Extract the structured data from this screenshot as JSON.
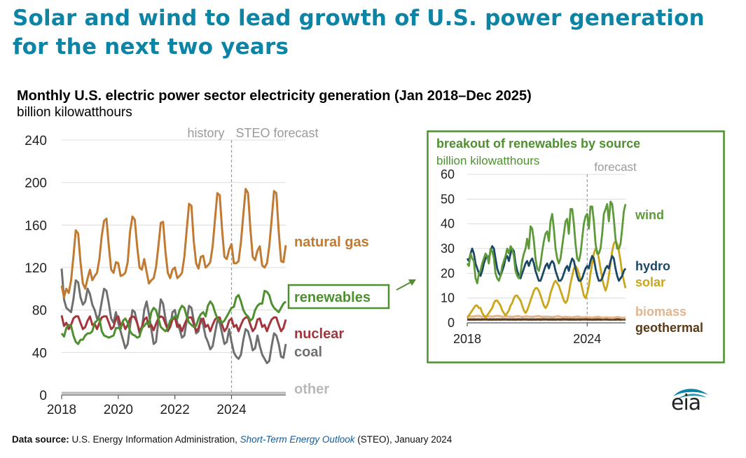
{
  "headline": "Solar and wind to lead growth of U.S. power generation for the next two years",
  "chart_title": "Monthly U.S. electric power sector electricity generation (Jan 2018–Dec 2025)",
  "chart_unit": "billion kilowatthours",
  "source": {
    "label": "Data source:",
    "text_before": " U.S. Energy Information Administration, ",
    "publication": "Short-Term Energy Outlook",
    "text_after": " (STEO), January 2024"
  },
  "logo_text": "eia",
  "colors": {
    "natural_gas": "#c07a31",
    "renewables": "#4e8f2f",
    "nuclear": "#a2363c",
    "coal": "#6f6f6f",
    "other": "#b9b9b9",
    "wind": "#5e9a3a",
    "hydro": "#1b4866",
    "solar": "#c9a61a",
    "biomass": "#e2b58e",
    "geothermal": "#5a3a18",
    "axis_text": "#222222",
    "forecast_label": "#9b9b9b",
    "inset_border": "#4e8f2f"
  },
  "chart_data": [
    {
      "type": "line",
      "title": "Monthly U.S. electric power sector electricity generation (Jan 2018–Dec 2025)",
      "ylabel": "billion kilowatthours",
      "x_range": [
        "2018-01",
        "2025-12"
      ],
      "ylim": [
        0,
        240
      ],
      "yticks": [
        0,
        40,
        80,
        120,
        160,
        200,
        240
      ],
      "xticks": [
        "2018",
        "2020",
        "2022",
        "2024"
      ],
      "history_label": "history",
      "forecast_label": "STEO forecast",
      "forecast_start": "2024-01",
      "grid": true,
      "series": [
        {
          "name": "natural gas",
          "key": "natural_gas",
          "values": [
            103,
            92,
            100,
            96,
            108,
            130,
            155,
            152,
            125,
            105,
            100,
            110,
            118,
            108,
            112,
            115,
            128,
            150,
            164,
            166,
            140,
            118,
            115,
            125,
            124,
            112,
            113,
            115,
            125,
            154,
            168,
            165,
            140,
            120,
            118,
            128,
            116,
            105,
            108,
            110,
            120,
            140,
            162,
            163,
            135,
            115,
            110,
            118,
            120,
            110,
            112,
            115,
            130,
            155,
            180,
            178,
            145,
            124,
            119,
            130,
            131,
            120,
            122,
            125,
            140,
            165,
            190,
            188,
            155,
            130,
            128,
            137,
            142,
            124,
            124,
            126,
            144,
            170,
            194,
            190,
            156,
            130,
            127,
            136,
            140,
            122,
            120,
            124,
            140,
            165,
            192,
            190,
            154,
            126,
            125,
            141
          ]
        },
        {
          "name": "renewables",
          "key": "renewables",
          "values": [
            58,
            55,
            63,
            66,
            65,
            56,
            50,
            48,
            52,
            52,
            56,
            58,
            58,
            60,
            68,
            70,
            72,
            60,
            56,
            55,
            54,
            55,
            56,
            63,
            63,
            62,
            70,
            72,
            68,
            60,
            57,
            56,
            54,
            55,
            63,
            65,
            68,
            66,
            78,
            82,
            80,
            72,
            64,
            62,
            60,
            63,
            70,
            72,
            74,
            72,
            80,
            84,
            82,
            74,
            68,
            66,
            64,
            65,
            72,
            76,
            78,
            74,
            84,
            88,
            85,
            78,
            72,
            70,
            68,
            70,
            74,
            78,
            82,
            83,
            92,
            94,
            88,
            80,
            76,
            74,
            70,
            72,
            80,
            84,
            86,
            86,
            98,
            97,
            94,
            86,
            82,
            80,
            78,
            82,
            86,
            88
          ]
        },
        {
          "name": "nuclear",
          "key": "nuclear",
          "values": [
            75,
            65,
            68,
            62,
            66,
            72,
            74,
            74,
            68,
            62,
            64,
            70,
            74,
            66,
            67,
            62,
            68,
            73,
            74,
            74,
            68,
            62,
            64,
            72,
            74,
            66,
            68,
            62,
            66,
            72,
            74,
            73,
            68,
            60,
            64,
            71,
            73,
            64,
            66,
            61,
            67,
            72,
            74,
            73,
            67,
            61,
            64,
            71,
            73,
            64,
            66,
            60,
            66,
            71,
            73,
            73,
            67,
            60,
            63,
            70,
            72,
            64,
            66,
            60,
            66,
            71,
            73,
            73,
            66,
            60,
            63,
            70,
            72,
            64,
            66,
            60,
            66,
            71,
            73,
            73,
            66,
            60,
            63,
            71,
            72,
            64,
            66,
            60,
            66,
            71,
            73,
            73,
            66,
            60,
            63,
            71
          ]
        },
        {
          "name": "coal",
          "key": "coal",
          "values": [
            119,
            90,
            82,
            80,
            78,
            90,
            108,
            106,
            92,
            85,
            88,
            100,
            95,
            85,
            80,
            72,
            75,
            88,
            100,
            98,
            86,
            72,
            68,
            78,
            68,
            60,
            52,
            44,
            48,
            65,
            80,
            78,
            68,
            58,
            62,
            80,
            88,
            76,
            62,
            48,
            50,
            70,
            90,
            86,
            72,
            60,
            64,
            78,
            80,
            68,
            62,
            54,
            56,
            70,
            84,
            82,
            70,
            58,
            60,
            72,
            66,
            55,
            50,
            43,
            46,
            58,
            70,
            68,
            58,
            48,
            50,
            62,
            50,
            40,
            36,
            34,
            38,
            52,
            62,
            60,
            52,
            42,
            44,
            56,
            46,
            38,
            34,
            30,
            32,
            46,
            58,
            56,
            48,
            36,
            35,
            48
          ]
        },
        {
          "name": "other",
          "key": "other",
          "values": [
            2,
            2,
            2,
            2,
            2,
            2,
            2,
            2,
            2,
            2,
            2,
            2,
            2,
            2,
            2,
            2,
            2,
            2,
            2,
            2,
            2,
            2,
            2,
            2,
            2,
            2,
            2,
            2,
            2,
            2,
            2,
            2,
            2,
            2,
            2,
            2,
            2,
            2,
            2,
            2,
            2,
            2,
            2,
            2,
            2,
            2,
            2,
            2,
            2,
            2,
            2,
            2,
            2,
            2,
            2,
            2,
            2,
            2,
            2,
            2,
            2,
            2,
            2,
            2,
            2,
            2,
            2,
            2,
            2,
            2,
            2,
            2,
            2,
            2,
            2,
            2,
            2,
            2,
            2,
            2,
            2,
            2,
            2,
            2,
            2,
            2,
            2,
            2,
            2,
            2,
            2,
            2,
            2,
            2,
            2,
            2
          ]
        }
      ]
    },
    {
      "type": "line",
      "title": "breakout of renewables by source",
      "ylabel": "billion kilowatthours",
      "x_range": [
        "2018-01",
        "2025-12"
      ],
      "ylim": [
        0,
        60
      ],
      "yticks": [
        0,
        10,
        20,
        30,
        40,
        50,
        60
      ],
      "xticks": [
        "2018",
        "2024"
      ],
      "forecast_label": "forecast",
      "forecast_start": "2024-01",
      "grid": true,
      "series": [
        {
          "name": "wind",
          "key": "wind",
          "values": [
            24,
            23,
            28,
            26,
            25,
            18,
            16,
            20,
            21,
            24,
            26,
            28,
            27,
            24,
            30,
            29,
            26,
            20,
            18,
            17,
            19,
            23,
            25,
            27,
            30,
            28,
            31,
            30,
            27,
            21,
            19,
            18,
            20,
            25,
            28,
            30,
            34,
            30,
            39,
            38,
            33,
            26,
            22,
            21,
            24,
            29,
            33,
            36,
            37,
            33,
            41,
            44,
            38,
            30,
            26,
            24,
            26,
            31,
            36,
            41,
            42,
            36,
            46,
            46,
            40,
            32,
            26,
            25,
            28,
            34,
            40,
            43,
            44,
            38,
            47,
            47,
            41,
            32,
            28,
            28,
            30,
            36,
            44,
            46,
            48,
            41,
            49,
            48,
            42,
            34,
            30,
            30,
            32,
            38,
            45,
            48
          ]
        },
        {
          "name": "hydro",
          "key": "hydro",
          "values": [
            26,
            25,
            28,
            30,
            28,
            24,
            22,
            20,
            19,
            21,
            24,
            26,
            27,
            26,
            29,
            31,
            30,
            26,
            22,
            20,
            19,
            21,
            23,
            26,
            27,
            25,
            28,
            30,
            29,
            24,
            21,
            19,
            18,
            20,
            22,
            24,
            25,
            23,
            25,
            26,
            24,
            21,
            19,
            17,
            17,
            19,
            21,
            23,
            24,
            22,
            24,
            25,
            24,
            21,
            19,
            17,
            17,
            18,
            20,
            22,
            23,
            21,
            24,
            26,
            25,
            22,
            19,
            17,
            17,
            18,
            20,
            22,
            23,
            22,
            25,
            27,
            26,
            22,
            19,
            17,
            17,
            18,
            20,
            22,
            23,
            22,
            25,
            27,
            26,
            22,
            19,
            17,
            18,
            19,
            21,
            22
          ]
        },
        {
          "name": "solar",
          "key": "solar",
          "values": [
            2,
            3,
            4,
            5,
            6,
            7,
            7,
            6,
            6,
            4,
            3,
            2,
            3,
            4,
            5,
            6,
            8,
            9,
            9,
            8,
            7,
            5,
            4,
            3,
            4,
            5,
            7,
            8,
            10,
            11,
            11,
            10,
            9,
            7,
            5,
            4,
            5,
            7,
            9,
            11,
            13,
            14,
            14,
            13,
            11,
            9,
            7,
            6,
            7,
            9,
            12,
            14,
            16,
            17,
            16,
            15,
            13,
            11,
            9,
            8,
            9,
            12,
            16,
            19,
            22,
            23,
            22,
            20,
            17,
            14,
            11,
            10,
            12,
            15,
            20,
            24,
            28,
            30,
            29,
            26,
            22,
            18,
            15,
            13,
            15,
            19,
            24,
            29,
            32,
            33,
            32,
            29,
            25,
            20,
            17,
            14
          ]
        },
        {
          "name": "biomass",
          "key": "biomass",
          "values": [
            2.7,
            2.6,
            2.6,
            2.5,
            2.6,
            2.7,
            2.8,
            2.8,
            2.6,
            2.5,
            2.6,
            2.7,
            2.7,
            2.6,
            2.6,
            2.5,
            2.6,
            2.7,
            2.8,
            2.8,
            2.6,
            2.5,
            2.5,
            2.6,
            2.6,
            2.5,
            2.5,
            2.4,
            2.5,
            2.6,
            2.7,
            2.7,
            2.5,
            2.4,
            2.5,
            2.6,
            2.6,
            2.5,
            2.5,
            2.4,
            2.5,
            2.6,
            2.7,
            2.7,
            2.5,
            2.4,
            2.4,
            2.5,
            2.5,
            2.4,
            2.4,
            2.3,
            2.4,
            2.5,
            2.6,
            2.6,
            2.4,
            2.3,
            2.3,
            2.4,
            2.4,
            2.3,
            2.3,
            2.2,
            2.3,
            2.4,
            2.5,
            2.5,
            2.3,
            2.2,
            2.2,
            2.3,
            2.3,
            2.2,
            2.2,
            2.1,
            2.2,
            2.3,
            2.4,
            2.4,
            2.2,
            2.1,
            2.1,
            2.2,
            2.2,
            2.1,
            2.1,
            2.0,
            2.1,
            2.2,
            2.3,
            2.3,
            2.1,
            2.0,
            2.0,
            2.1
          ]
        },
        {
          "name": "geothermal",
          "key": "geothermal",
          "values": [
            1.4,
            1.3,
            1.4,
            1.3,
            1.4,
            1.3,
            1.4,
            1.4,
            1.3,
            1.4,
            1.4,
            1.4,
            1.4,
            1.3,
            1.4,
            1.3,
            1.4,
            1.3,
            1.4,
            1.4,
            1.3,
            1.4,
            1.4,
            1.4,
            1.4,
            1.3,
            1.4,
            1.3,
            1.4,
            1.3,
            1.4,
            1.4,
            1.3,
            1.4,
            1.4,
            1.4,
            1.4,
            1.3,
            1.4,
            1.3,
            1.4,
            1.3,
            1.4,
            1.4,
            1.3,
            1.4,
            1.4,
            1.4,
            1.4,
            1.3,
            1.4,
            1.3,
            1.4,
            1.3,
            1.4,
            1.4,
            1.3,
            1.4,
            1.4,
            1.4,
            1.4,
            1.3,
            1.4,
            1.3,
            1.4,
            1.3,
            1.4,
            1.4,
            1.3,
            1.4,
            1.4,
            1.4,
            1.4,
            1.3,
            1.4,
            1.3,
            1.4,
            1.3,
            1.4,
            1.4,
            1.3,
            1.4,
            1.4,
            1.4,
            1.4,
            1.3,
            1.4,
            1.3,
            1.4,
            1.3,
            1.4,
            1.4,
            1.3,
            1.4,
            1.4,
            1.4
          ]
        }
      ]
    }
  ]
}
